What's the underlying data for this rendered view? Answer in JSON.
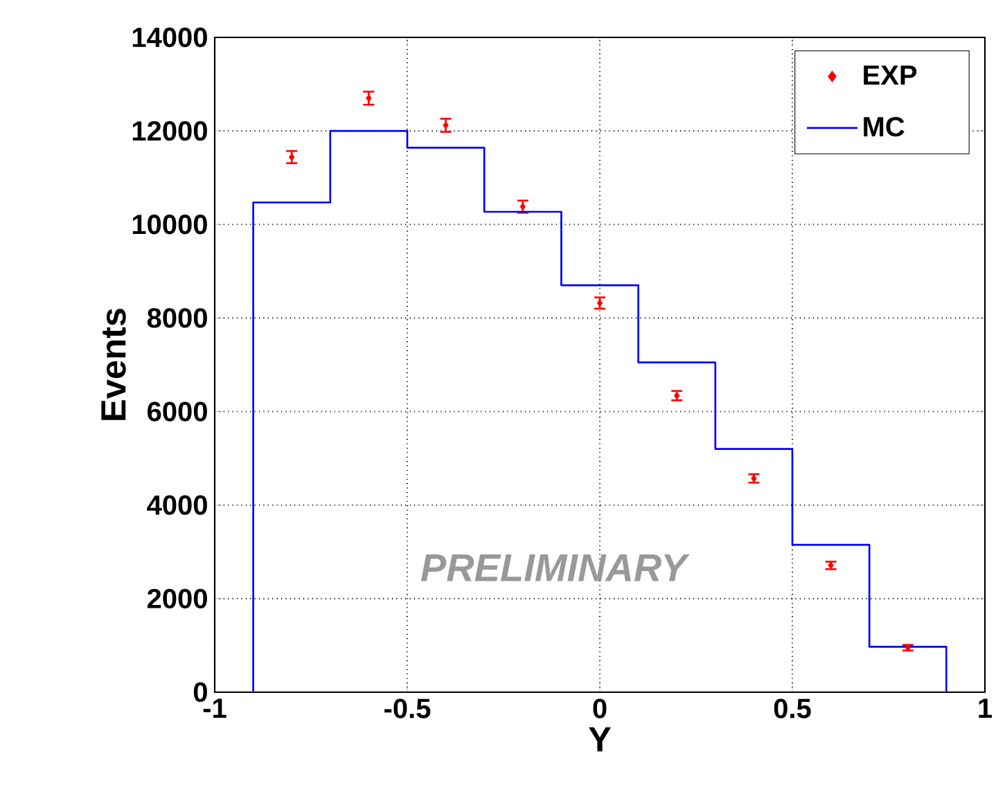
{
  "chart_data": {
    "type": "histogram",
    "xlabel": "Y",
    "ylabel": "Events",
    "xlim": [
      -1,
      1
    ],
    "xticks": [
      -1,
      -0.5,
      0,
      0.5,
      1
    ],
    "ylim": [
      0,
      14000
    ],
    "yticks": [
      0,
      2000,
      4000,
      6000,
      8000,
      10000,
      12000,
      14000
    ],
    "grid": true,
    "legend": "top right",
    "annotations": [
      "PRELIMINARY"
    ],
    "series": [
      {
        "name": "EXP",
        "type": "scatter",
        "marker": "diamond",
        "color": "#ff0000",
        "x": [
          -0.8,
          -0.6,
          -0.4,
          -0.2,
          0,
          0.2,
          0.4,
          0.6,
          0.8
        ],
        "values": [
          11440,
          12700,
          12120,
          10380,
          8320,
          6340,
          4570,
          2710,
          950
        ],
        "errors": [
          130,
          140,
          140,
          130,
          120,
          100,
          90,
          80,
          60
        ]
      },
      {
        "name": "MC",
        "color": "#0000ff",
        "bins": [
          -0.9,
          -0.7,
          -0.5,
          -0.3,
          -0.1,
          0.1,
          0.3,
          0.5,
          0.7,
          0.9
        ],
        "values": [
          10470,
          12000,
          11640,
          10270,
          8700,
          7050,
          5200,
          3150,
          970
        ]
      }
    ]
  }
}
